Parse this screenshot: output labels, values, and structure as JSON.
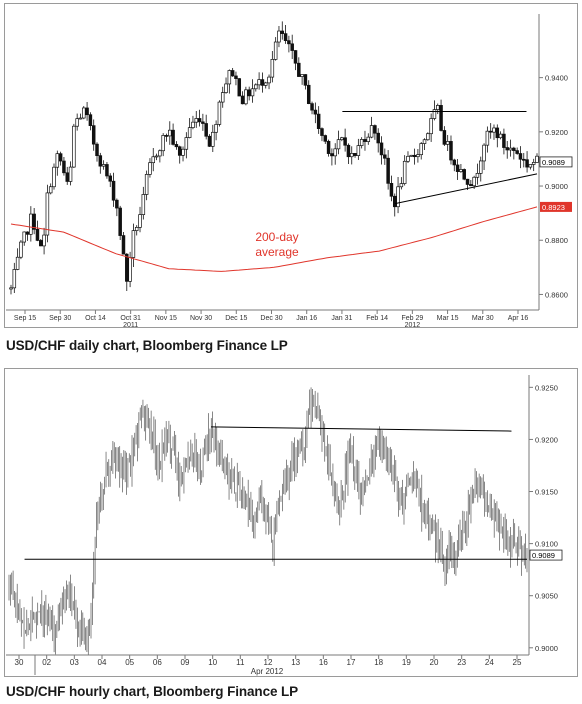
{
  "chart_data": [
    {
      "type": "ohlc",
      "caption": "USD/CHF daily chart, Bloomberg Finance LP",
      "x_ticks": [
        "Sep 15",
        "Sep 30",
        "Oct 14",
        "Oct 31",
        "Nov 15",
        "Nov 30",
        "Dec 15",
        "Dec 30",
        "Jan 16",
        "Jan 31",
        "Feb 14",
        "Feb 29",
        "Mar 15",
        "Mar 30",
        "Apr 16"
      ],
      "x_year_labels": [
        {
          "label": "2011",
          "under": "Oct 31"
        },
        {
          "label": "2012",
          "under": "Feb 29"
        }
      ],
      "y_ticks": [
        "0.9400",
        "0.9200",
        "0.9000",
        "0.8800",
        "0.8600"
      ],
      "y_tick_values": [
        0.94,
        0.92,
        0.9,
        0.88,
        0.86
      ],
      "ylim": [
        0.855,
        0.962
      ],
      "last_price": "0.9089",
      "ma_value": "0.8923",
      "ma_label": [
        "200-day",
        "average"
      ],
      "close_path": [
        [
          0,
          0.862
        ],
        [
          0.02,
          0.878
        ],
        [
          0.04,
          0.889
        ],
        [
          0.06,
          0.874
        ],
        [
          0.07,
          0.898
        ],
        [
          0.09,
          0.912
        ],
        [
          0.11,
          0.898
        ],
        [
          0.12,
          0.923
        ],
        [
          0.14,
          0.928
        ],
        [
          0.16,
          0.914
        ],
        [
          0.18,
          0.905
        ],
        [
          0.2,
          0.894
        ],
        [
          0.21,
          0.879
        ],
        [
          0.22,
          0.865
        ],
        [
          0.23,
          0.88
        ],
        [
          0.25,
          0.893
        ],
        [
          0.26,
          0.905
        ],
        [
          0.28,
          0.914
        ],
        [
          0.3,
          0.921
        ],
        [
          0.32,
          0.91
        ],
        [
          0.34,
          0.922
        ],
        [
          0.36,
          0.926
        ],
        [
          0.38,
          0.915
        ],
        [
          0.4,
          0.935
        ],
        [
          0.42,
          0.943
        ],
        [
          0.44,
          0.932
        ],
        [
          0.46,
          0.936
        ],
        [
          0.49,
          0.941
        ],
        [
          0.51,
          0.957
        ],
        [
          0.53,
          0.95
        ],
        [
          0.55,
          0.941
        ],
        [
          0.57,
          0.93
        ],
        [
          0.59,
          0.919
        ],
        [
          0.61,
          0.912
        ],
        [
          0.63,
          0.917
        ],
        [
          0.65,
          0.91
        ],
        [
          0.67,
          0.918
        ],
        [
          0.69,
          0.922
        ],
        [
          0.71,
          0.909
        ],
        [
          0.72,
          0.897
        ],
        [
          0.73,
          0.894
        ],
        [
          0.75,
          0.908
        ],
        [
          0.77,
          0.912
        ],
        [
          0.79,
          0.919
        ],
        [
          0.81,
          0.929
        ],
        [
          0.82,
          0.919
        ],
        [
          0.84,
          0.91
        ],
        [
          0.86,
          0.904
        ],
        [
          0.88,
          0.901
        ],
        [
          0.9,
          0.917
        ],
        [
          0.92,
          0.921
        ],
        [
          0.94,
          0.914
        ],
        [
          0.96,
          0.913
        ],
        [
          0.98,
          0.908
        ],
        [
          1.0,
          0.909
        ]
      ],
      "ma_path": [
        [
          0,
          0.886
        ],
        [
          0.1,
          0.883
        ],
        [
          0.2,
          0.875
        ],
        [
          0.3,
          0.8695
        ],
        [
          0.4,
          0.8685
        ],
        [
          0.5,
          0.87
        ],
        [
          0.6,
          0.8735
        ],
        [
          0.7,
          0.876
        ],
        [
          0.8,
          0.881
        ],
        [
          0.9,
          0.887
        ],
        [
          1.0,
          0.8923
        ]
      ],
      "trend_lines": [
        {
          "name": "resistance",
          "from": [
            0.63,
            0.9275
          ],
          "to": [
            0.98,
            0.9275
          ]
        },
        {
          "name": "support",
          "from": [
            0.73,
            0.8935
          ],
          "to": [
            1.0,
            0.9045
          ]
        }
      ]
    },
    {
      "type": "ohlc",
      "caption": "USD/CHF hourly chart, Bloomberg Finance LP",
      "x_ticks": [
        "30",
        "02",
        "03",
        "04",
        "05",
        "06",
        "09",
        "10",
        "11",
        "12",
        "13",
        "16",
        "17",
        "18",
        "19",
        "20",
        "23",
        "24",
        "25"
      ],
      "x_year_label": "Apr 2012",
      "y_ticks": [
        "0.9250",
        "0.9200",
        "0.9150",
        "0.9100",
        "0.9050",
        "0.9000"
      ],
      "y_tick_values": [
        0.925,
        0.92,
        0.915,
        0.91,
        0.905,
        0.9
      ],
      "ylim": [
        0.8995,
        0.9258
      ],
      "last_price": "0.9089",
      "close_path": [
        [
          0,
          0.906
        ],
        [
          0.03,
          0.902
        ],
        [
          0.06,
          0.904
        ],
        [
          0.09,
          0.901
        ],
        [
          0.11,
          0.906
        ],
        [
          0.13,
          0.903
        ],
        [
          0.15,
          0.901
        ],
        [
          0.16,
          0.905
        ],
        [
          0.17,
          0.913
        ],
        [
          0.19,
          0.917
        ],
        [
          0.21,
          0.918
        ],
        [
          0.22,
          0.916
        ],
        [
          0.24,
          0.918
        ],
        [
          0.25,
          0.922
        ],
        [
          0.27,
          0.921
        ],
        [
          0.29,
          0.918
        ],
        [
          0.31,
          0.92
        ],
        [
          0.33,
          0.916
        ],
        [
          0.35,
          0.919
        ],
        [
          0.37,
          0.917
        ],
        [
          0.39,
          0.921
        ],
        [
          0.41,
          0.918
        ],
        [
          0.43,
          0.916
        ],
        [
          0.45,
          0.915
        ],
        [
          0.47,
          0.912
        ],
        [
          0.49,
          0.914
        ],
        [
          0.51,
          0.91
        ],
        [
          0.53,
          0.916
        ],
        [
          0.55,
          0.918
        ],
        [
          0.57,
          0.92
        ],
        [
          0.58,
          0.924
        ],
        [
          0.6,
          0.922
        ],
        [
          0.62,
          0.917
        ],
        [
          0.64,
          0.914
        ],
        [
          0.66,
          0.919
        ],
        [
          0.68,
          0.915
        ],
        [
          0.7,
          0.918
        ],
        [
          0.72,
          0.92
        ],
        [
          0.74,
          0.917
        ],
        [
          0.76,
          0.914
        ],
        [
          0.78,
          0.917
        ],
        [
          0.8,
          0.913
        ],
        [
          0.82,
          0.911
        ],
        [
          0.84,
          0.908
        ],
        [
          0.86,
          0.909
        ],
        [
          0.88,
          0.912
        ],
        [
          0.9,
          0.915
        ],
        [
          0.91,
          0.916
        ],
        [
          0.93,
          0.913
        ],
        [
          0.95,
          0.912
        ],
        [
          0.97,
          0.91
        ],
        [
          1.0,
          0.9089
        ]
      ],
      "trend_lines": [
        {
          "name": "resistance",
          "from": [
            0.39,
            0.9212
          ],
          "to": [
            0.97,
            0.9208
          ]
        },
        {
          "name": "support",
          "from": [
            0.03,
            0.9085
          ],
          "to": [
            1.0,
            0.9085
          ]
        }
      ]
    }
  ]
}
